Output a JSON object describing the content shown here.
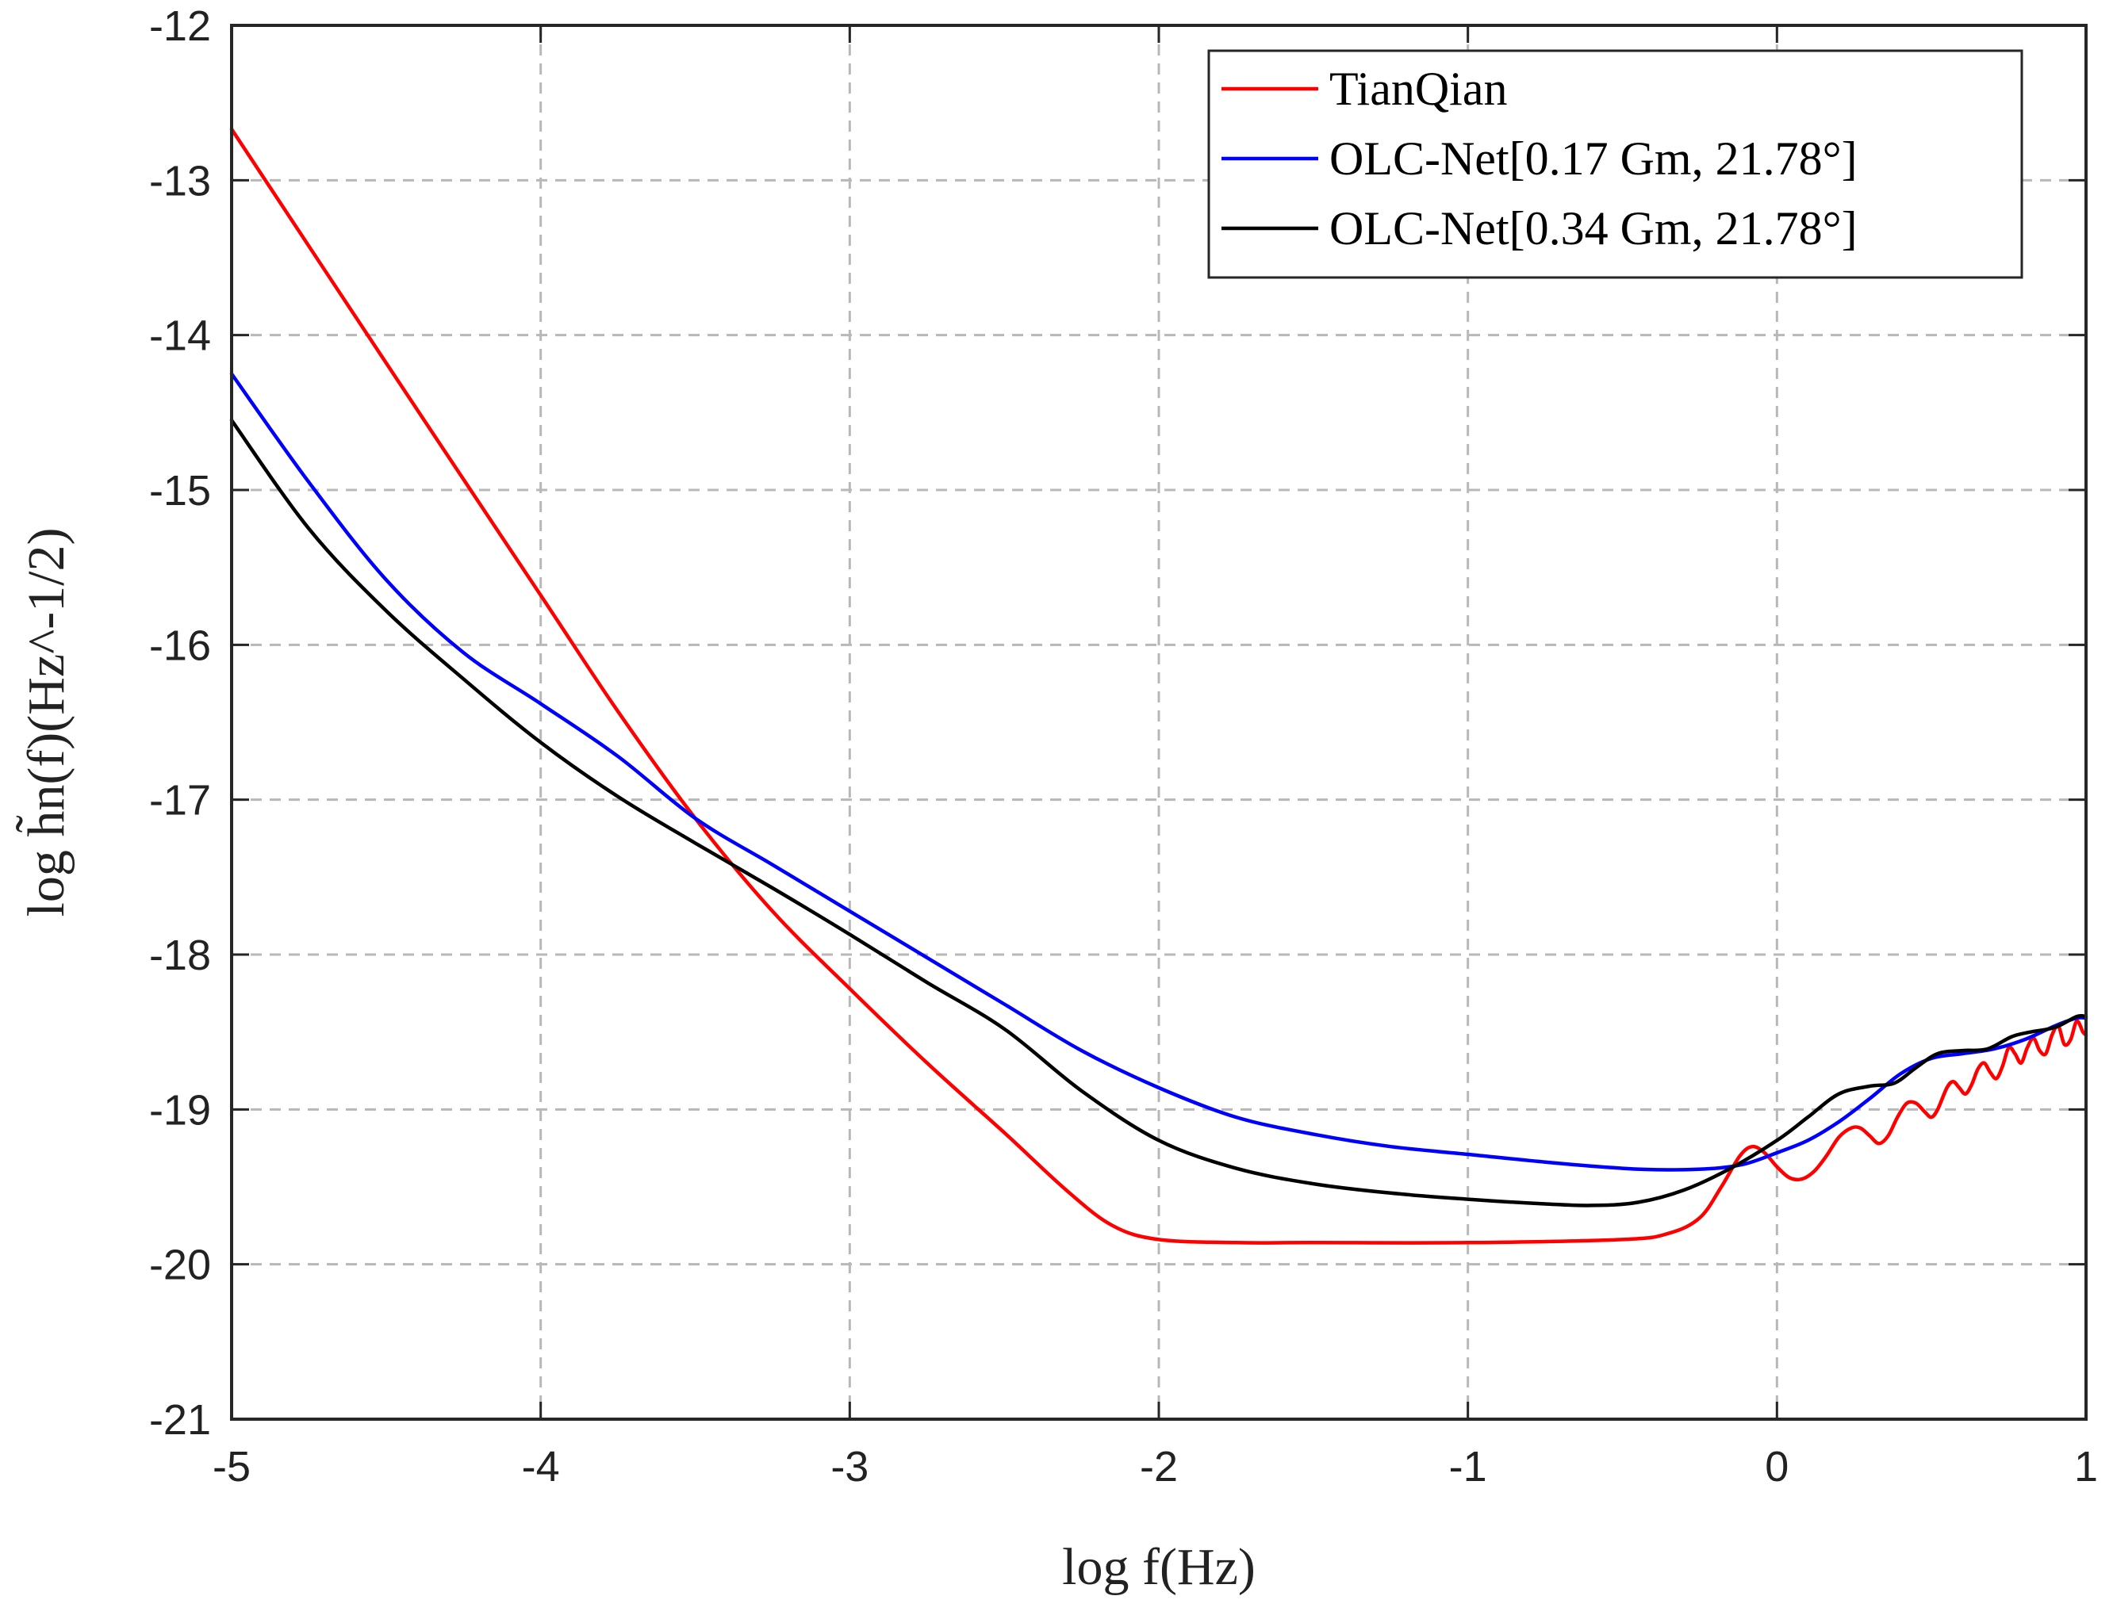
{
  "chart_data": {
    "type": "line",
    "title": "",
    "xlabel": "log f(Hz)",
    "ylabel": "log h̃n(f)(Hz^-1/2)",
    "xlim": [
      -5,
      1
    ],
    "ylim": [
      -21,
      -12
    ],
    "grid": true,
    "legend_position": "top-right",
    "x_ticks": [
      {
        "value": -5,
        "label": "-5"
      },
      {
        "value": -4,
        "label": "-4"
      },
      {
        "value": -3,
        "label": "-3"
      },
      {
        "value": -2,
        "label": "-2"
      },
      {
        "value": -1,
        "label": "-1"
      },
      {
        "value": 0,
        "label": "0"
      },
      {
        "value": 1,
        "label": "1"
      }
    ],
    "y_ticks": [
      {
        "value": -12,
        "label": "-12"
      },
      {
        "value": -13,
        "label": "-13"
      },
      {
        "value": -14,
        "label": "-14"
      },
      {
        "value": -15,
        "label": "-15"
      },
      {
        "value": -16,
        "label": "-16"
      },
      {
        "value": -17,
        "label": "-17"
      },
      {
        "value": -18,
        "label": "-18"
      },
      {
        "value": -19,
        "label": "-19"
      },
      {
        "value": -20,
        "label": "-20"
      },
      {
        "value": -21,
        "label": "-21"
      }
    ],
    "series": [
      {
        "name": "TianQian",
        "color": "#ff0000",
        "points": [
          [
            -5.0,
            -12.67
          ],
          [
            -4.5,
            -14.18
          ],
          [
            -4.0,
            -15.68
          ],
          [
            -3.75,
            -16.43
          ],
          [
            -3.5,
            -17.12
          ],
          [
            -3.25,
            -17.72
          ],
          [
            -3.0,
            -18.22
          ],
          [
            -2.75,
            -18.7
          ],
          [
            -2.5,
            -19.15
          ],
          [
            -2.3,
            -19.52
          ],
          [
            -2.15,
            -19.75
          ],
          [
            -2.0,
            -19.84
          ],
          [
            -1.75,
            -19.86
          ],
          [
            -1.5,
            -19.86
          ],
          [
            -1.0,
            -19.86
          ],
          [
            -0.5,
            -19.84
          ],
          [
            -0.35,
            -19.8
          ],
          [
            -0.25,
            -19.7
          ],
          [
            -0.18,
            -19.5
          ],
          [
            -0.12,
            -19.3
          ],
          [
            -0.08,
            -19.24
          ],
          [
            -0.04,
            -19.28
          ],
          [
            0.0,
            -19.37
          ],
          [
            0.04,
            -19.44
          ],
          [
            0.08,
            -19.45
          ],
          [
            0.12,
            -19.4
          ],
          [
            0.16,
            -19.3
          ],
          [
            0.2,
            -19.18
          ],
          [
            0.24,
            -19.12
          ],
          [
            0.27,
            -19.12
          ],
          [
            0.3,
            -19.17
          ],
          [
            0.33,
            -19.22
          ],
          [
            0.36,
            -19.17
          ],
          [
            0.39,
            -19.05
          ],
          [
            0.42,
            -18.96
          ],
          [
            0.45,
            -18.96
          ],
          [
            0.48,
            -19.02
          ],
          [
            0.5,
            -19.05
          ],
          [
            0.52,
            -19.0
          ],
          [
            0.55,
            -18.86
          ],
          [
            0.57,
            -18.82
          ],
          [
            0.59,
            -18.86
          ],
          [
            0.61,
            -18.9
          ],
          [
            0.63,
            -18.84
          ],
          [
            0.65,
            -18.74
          ],
          [
            0.67,
            -18.7
          ],
          [
            0.69,
            -18.76
          ],
          [
            0.71,
            -18.8
          ],
          [
            0.73,
            -18.72
          ],
          [
            0.75,
            -18.6
          ],
          [
            0.77,
            -18.64
          ],
          [
            0.79,
            -18.7
          ],
          [
            0.81,
            -18.6
          ],
          [
            0.83,
            -18.54
          ],
          [
            0.85,
            -18.62
          ],
          [
            0.87,
            -18.64
          ],
          [
            0.89,
            -18.52
          ],
          [
            0.91,
            -18.46
          ],
          [
            0.93,
            -18.58
          ],
          [
            0.95,
            -18.55
          ],
          [
            0.97,
            -18.43
          ],
          [
            0.99,
            -18.5
          ],
          [
            1.0,
            -18.52
          ]
        ]
      },
      {
        "name": "OLC-Net[0.17 Gm,  21.78°]",
        "color": "#0000ff",
        "points": [
          [
            -5.0,
            -14.25
          ],
          [
            -4.75,
            -14.95
          ],
          [
            -4.5,
            -15.58
          ],
          [
            -4.25,
            -16.05
          ],
          [
            -4.0,
            -16.38
          ],
          [
            -3.75,
            -16.72
          ],
          [
            -3.5,
            -17.12
          ],
          [
            -3.25,
            -17.42
          ],
          [
            -3.0,
            -17.72
          ],
          [
            -2.75,
            -18.02
          ],
          [
            -2.5,
            -18.32
          ],
          [
            -2.25,
            -18.62
          ],
          [
            -2.0,
            -18.86
          ],
          [
            -1.75,
            -19.05
          ],
          [
            -1.5,
            -19.16
          ],
          [
            -1.25,
            -19.24
          ],
          [
            -1.0,
            -19.29
          ],
          [
            -0.75,
            -19.34
          ],
          [
            -0.5,
            -19.38
          ],
          [
            -0.35,
            -19.39
          ],
          [
            -0.2,
            -19.38
          ],
          [
            -0.1,
            -19.35
          ],
          [
            0.0,
            -19.28
          ],
          [
            0.1,
            -19.2
          ],
          [
            0.2,
            -19.08
          ],
          [
            0.3,
            -18.93
          ],
          [
            0.4,
            -18.77
          ],
          [
            0.5,
            -18.67
          ],
          [
            0.6,
            -18.64
          ],
          [
            0.7,
            -18.61
          ],
          [
            0.8,
            -18.55
          ],
          [
            0.9,
            -18.46
          ],
          [
            0.97,
            -18.41
          ],
          [
            1.0,
            -18.41
          ]
        ]
      },
      {
        "name": "OLC-Net[0.34 Gm,  21.78°]",
        "color": "#000000",
        "points": [
          [
            -5.0,
            -14.55
          ],
          [
            -4.75,
            -15.25
          ],
          [
            -4.5,
            -15.78
          ],
          [
            -4.25,
            -16.22
          ],
          [
            -4.0,
            -16.63
          ],
          [
            -3.75,
            -16.98
          ],
          [
            -3.5,
            -17.28
          ],
          [
            -3.25,
            -17.57
          ],
          [
            -3.0,
            -17.87
          ],
          [
            -2.75,
            -18.18
          ],
          [
            -2.5,
            -18.48
          ],
          [
            -2.25,
            -18.88
          ],
          [
            -2.0,
            -19.2
          ],
          [
            -1.75,
            -19.38
          ],
          [
            -1.5,
            -19.48
          ],
          [
            -1.25,
            -19.54
          ],
          [
            -1.0,
            -19.58
          ],
          [
            -0.75,
            -19.61
          ],
          [
            -0.6,
            -19.62
          ],
          [
            -0.45,
            -19.6
          ],
          [
            -0.3,
            -19.52
          ],
          [
            -0.15,
            -19.38
          ],
          [
            0.0,
            -19.2
          ],
          [
            0.1,
            -19.05
          ],
          [
            0.2,
            -18.9
          ],
          [
            0.3,
            -18.85
          ],
          [
            0.38,
            -18.83
          ],
          [
            0.45,
            -18.73
          ],
          [
            0.52,
            -18.64
          ],
          [
            0.6,
            -18.62
          ],
          [
            0.68,
            -18.61
          ],
          [
            0.76,
            -18.53
          ],
          [
            0.82,
            -18.5
          ],
          [
            0.9,
            -18.47
          ],
          [
            0.97,
            -18.4
          ],
          [
            1.0,
            -18.4
          ]
        ]
      }
    ]
  }
}
